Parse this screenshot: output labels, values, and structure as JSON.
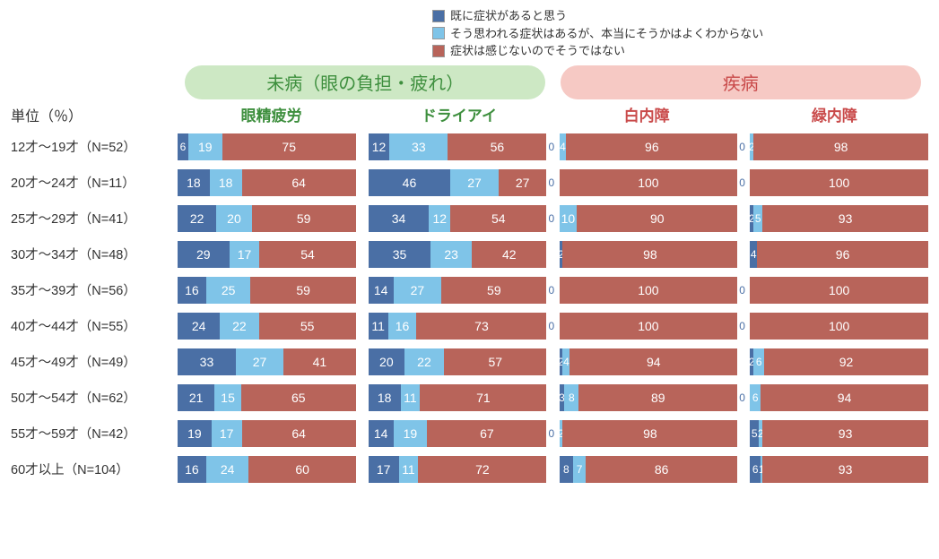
{
  "colors": {
    "seg1": "#4a6fa5",
    "seg2": "#7fc4e8",
    "seg3": "#b8645a",
    "pill_mibyo_bg": "#cde8c4",
    "pill_mibyo_text": "#3e8f3e",
    "pill_shippei_bg": "#f6c9c4",
    "pill_shippei_text": "#c94a4a",
    "sub_green": "#3e8f3e",
    "sub_red": "#c94a4a"
  },
  "legend": [
    "既に症状があると思う",
    "そう思われる症状はあるが、本当にそうかはよくわからない",
    "症状は感じないのでそうではない"
  ],
  "unit_label": "単位（％）",
  "groups": [
    {
      "title": "未病（眼の負担・疲れ）",
      "color_key": "mibyo",
      "subs": [
        "眼精疲労",
        "ドライアイ"
      ]
    },
    {
      "title": "疾病",
      "color_key": "shippei",
      "subs": [
        "白内障",
        "緑内障"
      ]
    }
  ],
  "rows": [
    {
      "label": "12才～19才（N=52）",
      "data": [
        [
          6,
          19,
          75
        ],
        [
          12,
          33,
          56
        ],
        [
          0,
          4,
          96
        ],
        [
          0,
          2,
          98
        ]
      ]
    },
    {
      "label": "20才～24才（N=11）",
      "data": [
        [
          18,
          18,
          64
        ],
        [
          46,
          27,
          27
        ],
        [
          0,
          0,
          100
        ],
        [
          0,
          0,
          100
        ]
      ]
    },
    {
      "label": "25才～29才（N=41）",
      "data": [
        [
          22,
          20,
          59
        ],
        [
          34,
          12,
          54
        ],
        [
          0,
          10,
          90
        ],
        [
          2,
          5,
          93
        ]
      ]
    },
    {
      "label": "30才～34才（N=48）",
      "data": [
        [
          29,
          17,
          54
        ],
        [
          35,
          23,
          42
        ],
        [
          2,
          0,
          98
        ],
        [
          4,
          0,
          96
        ]
      ]
    },
    {
      "label": "35才～39才（N=56）",
      "data": [
        [
          16,
          25,
          59
        ],
        [
          14,
          27,
          59
        ],
        [
          0,
          0,
          100
        ],
        [
          0,
          0,
          100
        ]
      ]
    },
    {
      "label": "40才～44才（N=55）",
      "data": [
        [
          24,
          22,
          55
        ],
        [
          11,
          16,
          73
        ],
        [
          0,
          0,
          100
        ],
        [
          0,
          0,
          100
        ]
      ]
    },
    {
      "label": "45才～49才（N=49）",
      "data": [
        [
          33,
          27,
          41
        ],
        [
          20,
          22,
          57
        ],
        [
          2,
          4,
          94
        ],
        [
          2,
          6,
          92
        ]
      ]
    },
    {
      "label": "50才～54才（N=62）",
      "data": [
        [
          21,
          15,
          65
        ],
        [
          18,
          11,
          71
        ],
        [
          3,
          8,
          89
        ],
        [
          0,
          6,
          94
        ]
      ]
    },
    {
      "label": "55才～59才（N=42）",
      "data": [
        [
          19,
          17,
          64
        ],
        [
          14,
          19,
          67
        ],
        [
          0,
          2,
          98
        ],
        [
          5,
          2,
          93
        ]
      ]
    },
    {
      "label": "60才以上（N=104）",
      "data": [
        [
          16,
          24,
          60
        ],
        [
          17,
          11,
          72
        ],
        [
          8,
          7,
          86
        ],
        [
          6,
          1,
          93
        ]
      ]
    }
  ]
}
